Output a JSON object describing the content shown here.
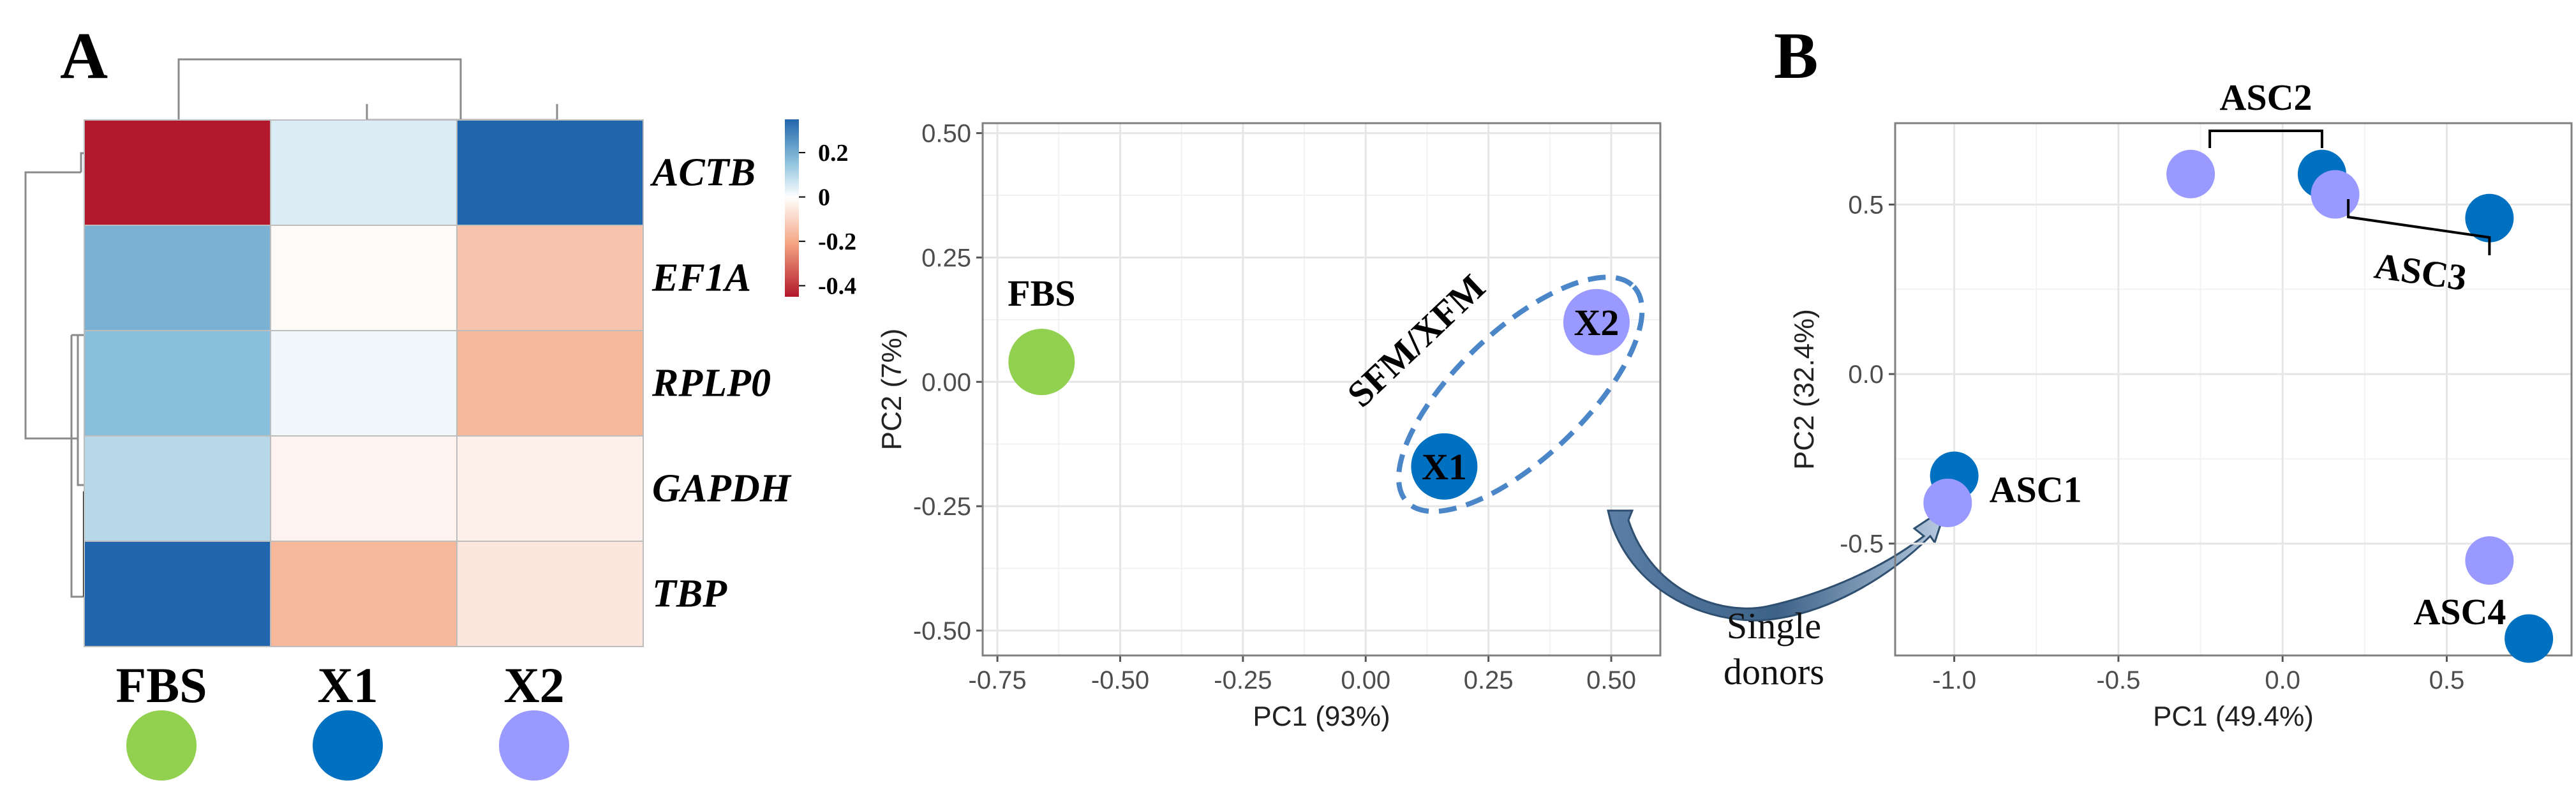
{
  "panels": {
    "a": "A",
    "b": "B"
  },
  "colors": {
    "fbs": "#92d050",
    "x1": "#0070c0",
    "x2": "#9999ff",
    "ellipse": "#4a86c8"
  },
  "heatmap": {
    "genes": [
      "ACTB",
      "EF1A",
      "RPLP0",
      "GAPDH",
      "TBP"
    ],
    "samples": [
      "FBS",
      "X1",
      "X2"
    ],
    "values": [
      [
        -0.45,
        0.05,
        0.3
      ],
      [
        0.18,
        -0.01,
        -0.15
      ],
      [
        0.16,
        0.02,
        -0.18
      ],
      [
        0.1,
        -0.03,
        -0.04
      ],
      [
        0.3,
        -0.18,
        -0.06
      ]
    ],
    "legend_ticks": [
      {
        "label": "0.2",
        "value": 0.2
      },
      {
        "label": "0",
        "value": 0
      },
      {
        "label": "-0.2",
        "value": -0.2
      },
      {
        "label": "-0.4",
        "value": -0.4
      }
    ],
    "scale_range": [
      -0.45,
      0.35
    ]
  },
  "chart_data": [
    {
      "type": "scatter",
      "xlabel": "PC1 (93%)",
      "ylabel": "PC2 (7%)",
      "xlim": [
        -0.78,
        0.6
      ],
      "ylim": [
        -0.55,
        0.52
      ],
      "xticks": [
        -0.75,
        -0.5,
        -0.25,
        0.0,
        0.25,
        0.5
      ],
      "xtick_labels": [
        "-0.75",
        "-0.50",
        "-0.25",
        "0.00",
        "0.25",
        "0.50"
      ],
      "yticks": [
        0.5,
        0.25,
        0.0,
        -0.25,
        -0.5
      ],
      "ytick_labels": [
        "0.50",
        "0.25",
        "0.00",
        "-0.25",
        "-0.50"
      ],
      "grid": true,
      "points": [
        {
          "label": "FBS",
          "x": -0.66,
          "y": 0.04,
          "color_key": "fbs"
        },
        {
          "label": "X1",
          "x": 0.16,
          "y": -0.17,
          "color_key": "x1"
        },
        {
          "label": "X2",
          "x": 0.47,
          "y": 0.12,
          "color_key": "x2"
        }
      ],
      "annotation": "SFM/XFM"
    },
    {
      "type": "scatter",
      "xlabel": "PC1 (49.4%)",
      "ylabel": "PC2 (32.4%)",
      "xlim": [
        -1.18,
        0.88
      ],
      "ylim": [
        -0.83,
        0.74
      ],
      "xticks": [
        -1.0,
        -0.5,
        0.0,
        0.5
      ],
      "xtick_labels": [
        "-1.0",
        "-0.5",
        "0.0",
        "0.5"
      ],
      "yticks": [
        0.5,
        0.0,
        -0.5
      ],
      "ytick_labels": [
        "0.5",
        "0.0",
        "-0.5"
      ],
      "grid": true,
      "points": [
        {
          "x": -0.28,
          "y": 0.59,
          "color_key": "x2"
        },
        {
          "x": 0.12,
          "y": 0.59,
          "color_key": "x1"
        },
        {
          "x": 0.16,
          "y": 0.53,
          "color_key": "x2"
        },
        {
          "x": 0.63,
          "y": 0.46,
          "color_key": "x1"
        },
        {
          "x": -1.0,
          "y": -0.3,
          "color_key": "x1"
        },
        {
          "x": -1.02,
          "y": -0.38,
          "color_key": "x2"
        },
        {
          "x": 0.63,
          "y": -0.55,
          "color_key": "x2"
        },
        {
          "x": 0.75,
          "y": -0.78,
          "color_key": "x1"
        }
      ],
      "labels": {
        "asc1": "ASC1",
        "asc2": "ASC2",
        "asc3": "ASC3",
        "asc4": "ASC4"
      }
    }
  ],
  "arrow_label": {
    "line1": "Single",
    "line2": "donors"
  }
}
